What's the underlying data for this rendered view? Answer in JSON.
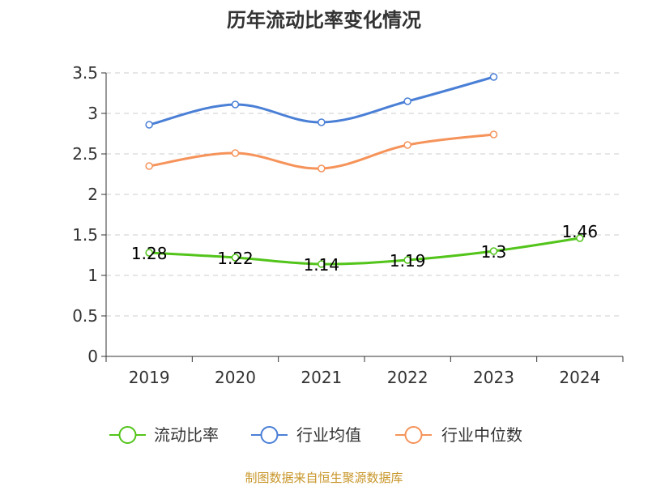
{
  "chart_data": {
    "type": "line",
    "title": "历年流动比率变化情况",
    "categories": [
      "2019",
      "2020",
      "2021",
      "2022",
      "2023",
      "2024"
    ],
    "ylim": [
      0,
      3.5
    ],
    "yticks": [
      "0",
      "0.5",
      "1",
      "1.5",
      "2",
      "2.5",
      "3",
      "3.5"
    ],
    "grid": true,
    "legend_position": "bottom",
    "series": [
      {
        "name": "流动比率",
        "color": "#52c41a",
        "values": [
          1.28,
          1.22,
          1.14,
          1.19,
          1.3,
          1.46
        ],
        "labels": [
          "1.28",
          "1.22",
          "1.14",
          "1.19",
          "1.3",
          "1.46"
        ]
      },
      {
        "name": "行业均值",
        "color": "#4a7fd6",
        "values": [
          2.86,
          3.11,
          2.89,
          3.15,
          3.45,
          null
        ]
      },
      {
        "name": "行业中位数",
        "color": "#f5935a",
        "values": [
          2.35,
          2.51,
          2.32,
          2.61,
          2.74,
          null
        ]
      }
    ]
  },
  "source_text": "制图数据来自恒生聚源数据库"
}
